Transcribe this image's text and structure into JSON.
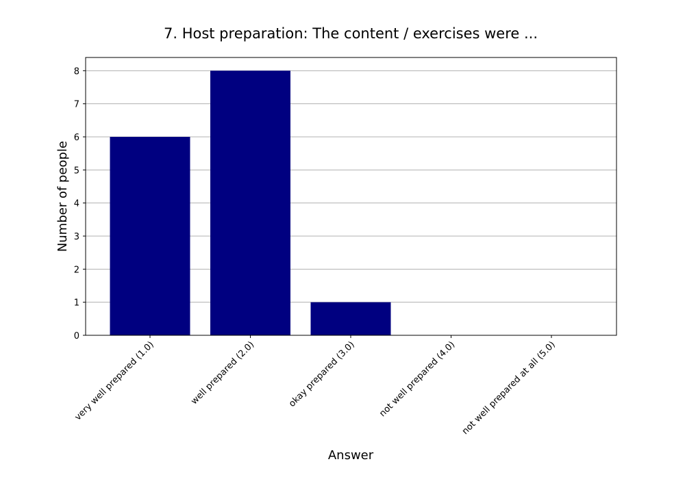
{
  "chart_data": {
    "type": "bar",
    "title": "7. Host preparation: The content / exercises were ...",
    "xlabel": "Answer",
    "ylabel": "Number of people",
    "categories": [
      "very well prepared (1.0)",
      "well prepared (2.0)",
      "okay prepared (3.0)",
      "not well prepared (4.0)",
      "not well prepared at all (5.0)"
    ],
    "values": [
      6,
      8,
      1,
      0,
      0
    ],
    "ylim": [
      0,
      8.4
    ],
    "yticks": [
      0,
      1,
      2,
      3,
      4,
      5,
      6,
      7,
      8
    ],
    "grid": "y",
    "bar_color": "#000080",
    "xtick_rotation": 45
  }
}
